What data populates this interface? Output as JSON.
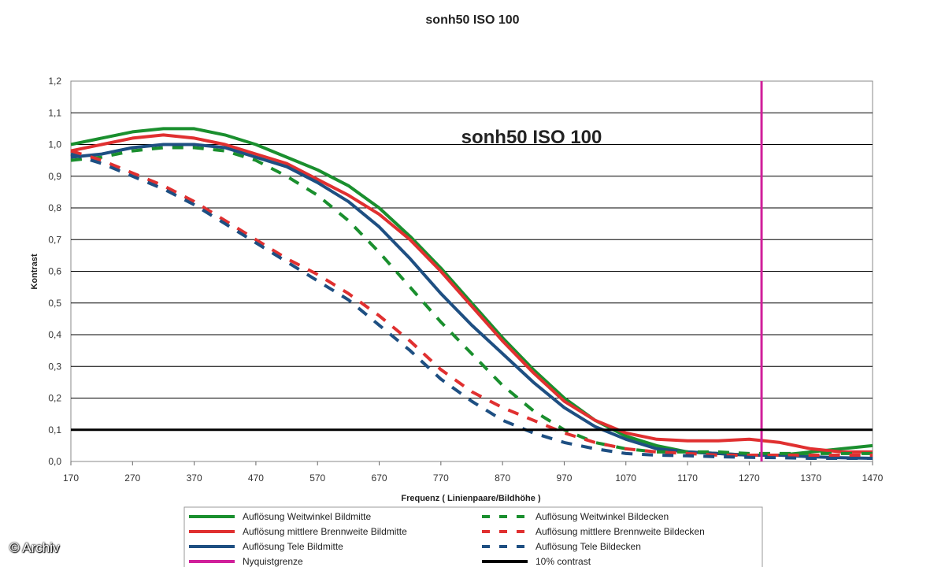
{
  "chart_data": {
    "type": "line",
    "title": "sonh50 ISO 100",
    "inner_title": "sonh50 ISO 100",
    "xlabel": "Frequenz ( Linienpaare/Bildhöhe )",
    "ylabel": "Kontrast",
    "xlim": [
      170,
      1470
    ],
    "ylim": [
      0,
      1.2
    ],
    "x_ticks": [
      170,
      270,
      370,
      470,
      570,
      670,
      770,
      870,
      970,
      1070,
      1170,
      1270,
      1370,
      1470
    ],
    "y_ticks": [
      "0,0",
      "0,1",
      "0,2",
      "0,3",
      "0,4",
      "0,5",
      "0,6",
      "0,7",
      "0,8",
      "0,9",
      "1,0",
      "1,1",
      "1,2"
    ],
    "grid": "horizontal",
    "legend_position": "bottom",
    "series": [
      {
        "name": "Auflösung Weitwinkel Bildmitte",
        "color": "#1a8f2e",
        "dash": "solid",
        "x": [
          170,
          220,
          270,
          320,
          370,
          420,
          470,
          520,
          570,
          620,
          670,
          720,
          770,
          820,
          870,
          920,
          970,
          1020,
          1070,
          1120,
          1170,
          1220,
          1270,
          1320,
          1370,
          1420,
          1470
        ],
        "y": [
          1.0,
          1.02,
          1.04,
          1.05,
          1.05,
          1.03,
          1.0,
          0.96,
          0.92,
          0.87,
          0.8,
          0.71,
          0.61,
          0.5,
          0.39,
          0.29,
          0.2,
          0.13,
          0.08,
          0.05,
          0.03,
          0.025,
          0.02,
          0.02,
          0.03,
          0.04,
          0.05
        ]
      },
      {
        "name": "Auflösung mittlere Brennweite Bildmitte",
        "color": "#e03030",
        "dash": "solid",
        "x": [
          170,
          220,
          270,
          320,
          370,
          420,
          470,
          520,
          570,
          620,
          670,
          720,
          770,
          820,
          870,
          920,
          970,
          1020,
          1070,
          1120,
          1170,
          1220,
          1270,
          1320,
          1370,
          1420,
          1470
        ],
        "y": [
          0.98,
          1.0,
          1.02,
          1.03,
          1.02,
          1.0,
          0.97,
          0.94,
          0.89,
          0.84,
          0.78,
          0.7,
          0.6,
          0.49,
          0.38,
          0.28,
          0.19,
          0.13,
          0.09,
          0.07,
          0.065,
          0.065,
          0.07,
          0.06,
          0.04,
          0.03,
          0.03
        ]
      },
      {
        "name": "Auflösung Tele Bildmitte",
        "color": "#1e4f82",
        "dash": "solid",
        "x": [
          170,
          220,
          270,
          320,
          370,
          420,
          470,
          520,
          570,
          620,
          670,
          720,
          770,
          820,
          870,
          920,
          970,
          1020,
          1070,
          1120,
          1170,
          1220,
          1270,
          1320,
          1370,
          1420,
          1470
        ],
        "y": [
          0.96,
          0.97,
          0.99,
          1.0,
          1.0,
          0.99,
          0.96,
          0.93,
          0.88,
          0.82,
          0.74,
          0.64,
          0.53,
          0.43,
          0.34,
          0.25,
          0.17,
          0.11,
          0.07,
          0.04,
          0.03,
          0.025,
          0.02,
          0.02,
          0.015,
          0.012,
          0.01
        ]
      },
      {
        "name": "Auflösung Weitwinkel Bildecken",
        "color": "#1a8f2e",
        "dash": "dashed",
        "x": [
          170,
          220,
          270,
          320,
          370,
          420,
          470,
          520,
          570,
          620,
          670,
          720,
          770,
          820,
          870,
          920,
          970,
          1020,
          1070,
          1120,
          1170,
          1220,
          1270,
          1320,
          1370,
          1420,
          1470
        ],
        "y": [
          0.95,
          0.96,
          0.98,
          0.99,
          0.99,
          0.98,
          0.95,
          0.9,
          0.84,
          0.76,
          0.66,
          0.55,
          0.44,
          0.34,
          0.24,
          0.16,
          0.1,
          0.06,
          0.04,
          0.03,
          0.03,
          0.03,
          0.025,
          0.025,
          0.025,
          0.025,
          0.025
        ]
      },
      {
        "name": "Auflösung mittlere Brennweite Bildecken",
        "color": "#e03030",
        "dash": "dashed",
        "x": [
          170,
          220,
          270,
          320,
          370,
          420,
          470,
          520,
          570,
          620,
          670,
          720,
          770,
          820,
          870,
          920,
          970,
          1020,
          1070,
          1120,
          1170,
          1220,
          1270,
          1320,
          1370,
          1420,
          1470
        ],
        "y": [
          0.98,
          0.95,
          0.91,
          0.87,
          0.82,
          0.76,
          0.7,
          0.64,
          0.59,
          0.53,
          0.46,
          0.38,
          0.29,
          0.22,
          0.17,
          0.13,
          0.09,
          0.06,
          0.04,
          0.03,
          0.025,
          0.02,
          0.02,
          0.02,
          0.02,
          0.02,
          0.02
        ]
      },
      {
        "name": "Auflösung Tele Bildecken",
        "color": "#1e4f82",
        "dash": "dashed",
        "x": [
          170,
          220,
          270,
          320,
          370,
          420,
          470,
          520,
          570,
          620,
          670,
          720,
          770,
          820,
          870,
          920,
          970,
          1020,
          1070,
          1120,
          1170,
          1220,
          1270,
          1320,
          1370,
          1420,
          1470
        ],
        "y": [
          0.97,
          0.94,
          0.9,
          0.86,
          0.81,
          0.75,
          0.69,
          0.63,
          0.57,
          0.51,
          0.43,
          0.35,
          0.26,
          0.19,
          0.13,
          0.09,
          0.06,
          0.04,
          0.025,
          0.02,
          0.018,
          0.015,
          0.013,
          0.012,
          0.01,
          0.01,
          0.01
        ]
      }
    ],
    "reference_lines": [
      {
        "name": "Nyquistgrenze",
        "color": "#d0209a",
        "orientation": "vertical",
        "x": 1290
      },
      {
        "name": "10% contrast",
        "color": "#000000",
        "orientation": "horizontal",
        "y": 0.1
      }
    ]
  },
  "watermark": "© Archiv"
}
